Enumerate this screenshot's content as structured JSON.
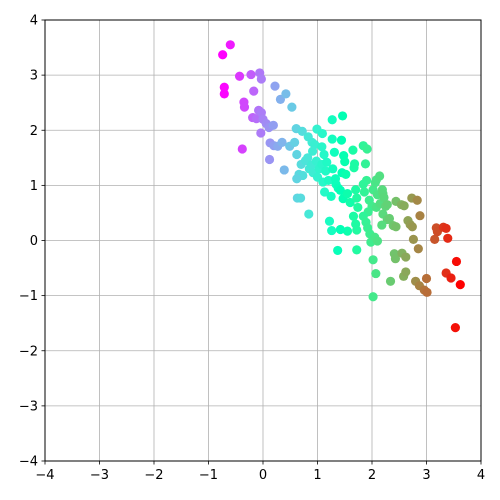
{
  "chart_data": {
    "type": "scatter",
    "title": "",
    "xlabel": "",
    "ylabel": "",
    "xlim": [
      -4,
      4
    ],
    "ylim": [
      -4,
      4
    ],
    "xticks": [
      "−4",
      "−3",
      "−2",
      "−1",
      "0",
      "1",
      "2",
      "3",
      "4"
    ],
    "yticks": [
      "−4",
      "−3",
      "−2",
      "−1",
      "0",
      "1",
      "2",
      "3",
      "4"
    ],
    "grid": true,
    "colormap": "rainbow (by x value)",
    "series": [
      {
        "points": [
          [
            -0.74,
            3.37
          ],
          [
            -0.6,
            3.55
          ],
          [
            -0.43,
            2.98
          ],
          [
            -0.22,
            3.01
          ],
          [
            -0.06,
            3.04
          ],
          [
            -0.71,
            2.78
          ],
          [
            -0.71,
            2.66
          ],
          [
            -0.35,
            2.51
          ],
          [
            -0.34,
            2.42
          ],
          [
            -0.17,
            2.71
          ],
          [
            -0.03,
            2.93
          ],
          [
            -0.19,
            2.23
          ],
          [
            -0.12,
            2.21
          ],
          [
            -0.08,
            2.36
          ],
          [
            -0.03,
            2.32
          ],
          [
            0.0,
            2.2
          ],
          [
            -0.38,
            1.66
          ],
          [
            -0.04,
            1.95
          ],
          [
            0.06,
            2.12
          ],
          [
            0.11,
            2.05
          ],
          [
            0.19,
            2.09
          ],
          [
            0.22,
            2.8
          ],
          [
            0.32,
            2.56
          ],
          [
            0.42,
            2.66
          ],
          [
            0.53,
            2.42
          ],
          [
            0.13,
            1.77
          ],
          [
            0.2,
            1.72
          ],
          [
            0.27,
            1.71
          ],
          [
            0.35,
            1.78
          ],
          [
            0.12,
            1.47
          ],
          [
            0.39,
            1.28
          ],
          [
            0.49,
            1.71
          ],
          [
            0.58,
            1.78
          ],
          [
            0.61,
            2.03
          ],
          [
            0.72,
            1.98
          ],
          [
            0.62,
            1.56
          ],
          [
            0.7,
            1.38
          ],
          [
            0.66,
            1.2
          ],
          [
            0.73,
            1.18
          ],
          [
            0.62,
            1.12
          ],
          [
            0.63,
            0.77
          ],
          [
            0.69,
            0.77
          ],
          [
            0.83,
            1.88
          ],
          [
            0.9,
            1.78
          ],
          [
            0.95,
            1.74
          ],
          [
            0.99,
            2.02
          ],
          [
            0.78,
            1.45
          ],
          [
            0.82,
            1.5
          ],
          [
            0.85,
            1.3
          ],
          [
            0.89,
            1.37
          ],
          [
            0.91,
            1.62
          ],
          [
            0.98,
            1.44
          ],
          [
            0.84,
            0.48
          ],
          [
            0.92,
            1.23
          ],
          [
            1.0,
            1.15
          ],
          [
            1.03,
            1.3
          ],
          [
            1.08,
            1.38
          ],
          [
            1.08,
            1.7
          ],
          [
            1.09,
            1.94
          ],
          [
            1.12,
            1.56
          ],
          [
            1.15,
            1.26
          ],
          [
            1.17,
            1.42
          ],
          [
            1.1,
            1.06
          ],
          [
            1.13,
            0.88
          ],
          [
            1.2,
            1.09
          ],
          [
            1.25,
            0.8
          ],
          [
            1.27,
            1.84
          ],
          [
            1.27,
            2.19
          ],
          [
            1.31,
            1.6
          ],
          [
            1.28,
            1.3
          ],
          [
            1.33,
            1.12
          ],
          [
            1.34,
            1.02
          ],
          [
            1.38,
            0.95
          ],
          [
            1.42,
            0.91
          ],
          [
            1.44,
            1.82
          ],
          [
            1.46,
            2.26
          ],
          [
            1.48,
            1.54
          ],
          [
            1.5,
            1.43
          ],
          [
            1.45,
            1.23
          ],
          [
            1.52,
            1.2
          ],
          [
            1.47,
            0.76
          ],
          [
            1.55,
            0.85
          ],
          [
            1.6,
            0.69
          ],
          [
            1.67,
            1.32
          ],
          [
            1.68,
            1.39
          ],
          [
            1.65,
            1.64
          ],
          [
            1.7,
            0.92
          ],
          [
            1.72,
            0.77
          ],
          [
            1.74,
            0.6
          ],
          [
            1.66,
            0.44
          ],
          [
            1.7,
            0.3
          ],
          [
            1.72,
            0.19
          ],
          [
            1.55,
            0.17
          ],
          [
            1.42,
            0.2
          ],
          [
            1.37,
            -0.18
          ],
          [
            1.22,
            0.35
          ],
          [
            1.26,
            0.18
          ],
          [
            1.72,
            -0.17
          ],
          [
            1.84,
            1.72
          ],
          [
            1.91,
            1.66
          ],
          [
            1.88,
            1.39
          ],
          [
            1.9,
            1.09
          ],
          [
            1.86,
            0.88
          ],
          [
            1.95,
            0.73
          ],
          [
            2.0,
            0.62
          ],
          [
            1.93,
            0.52
          ],
          [
            1.84,
            0.44
          ],
          [
            1.89,
            0.33
          ],
          [
            1.92,
            0.23
          ],
          [
            1.96,
            0.12
          ],
          [
            1.98,
            -0.03
          ],
          [
            2.05,
            0.06
          ],
          [
            2.1,
            -0.01
          ],
          [
            1.84,
            1.02
          ],
          [
            2.02,
            0.92
          ],
          [
            2.06,
            1.05
          ],
          [
            2.08,
            1.1
          ],
          [
            2.14,
            1.17
          ],
          [
            2.1,
            0.83
          ],
          [
            2.08,
            0.6
          ],
          [
            2.15,
            0.67
          ],
          [
            2.19,
            0.92
          ],
          [
            2.2,
            0.85
          ],
          [
            2.22,
            0.78
          ],
          [
            2.25,
            0.62
          ],
          [
            2.28,
            0.65
          ],
          [
            2.2,
            0.48
          ],
          [
            2.28,
            0.38
          ],
          [
            2.32,
            0.4
          ],
          [
            2.18,
            0.28
          ],
          [
            2.02,
            -0.35
          ],
          [
            2.07,
            -0.6
          ],
          [
            2.02,
            -1.02
          ],
          [
            2.34,
            -0.74
          ],
          [
            2.39,
            0.27
          ],
          [
            2.44,
            0.25
          ],
          [
            2.41,
            -0.24
          ],
          [
            2.43,
            -0.33
          ],
          [
            2.44,
            0.71
          ],
          [
            2.54,
            0.65
          ],
          [
            2.59,
            0.63
          ],
          [
            2.55,
            -0.23
          ],
          [
            2.58,
            -0.65
          ],
          [
            2.62,
            -0.57
          ],
          [
            2.62,
            -0.3
          ],
          [
            2.66,
            0.36
          ],
          [
            2.7,
            0.29
          ],
          [
            2.74,
            0.25
          ],
          [
            2.73,
            0.77
          ],
          [
            2.76,
            0.02
          ],
          [
            2.83,
            0.73
          ],
          [
            2.85,
            -0.15
          ],
          [
            2.88,
            0.45
          ],
          [
            2.8,
            -0.74
          ],
          [
            2.87,
            -0.82
          ],
          [
            2.96,
            -0.9
          ],
          [
            3.0,
            -0.69
          ],
          [
            3.01,
            -0.94
          ],
          [
            3.15,
            0.02
          ],
          [
            3.18,
            0.23
          ],
          [
            3.2,
            0.16
          ],
          [
            3.31,
            0.24
          ],
          [
            3.36,
            0.22
          ],
          [
            3.39,
            0.04
          ],
          [
            3.36,
            -0.59
          ],
          [
            3.45,
            -0.68
          ],
          [
            3.55,
            -0.38
          ],
          [
            3.62,
            -0.8
          ],
          [
            3.53,
            -1.58
          ]
        ]
      }
    ]
  }
}
